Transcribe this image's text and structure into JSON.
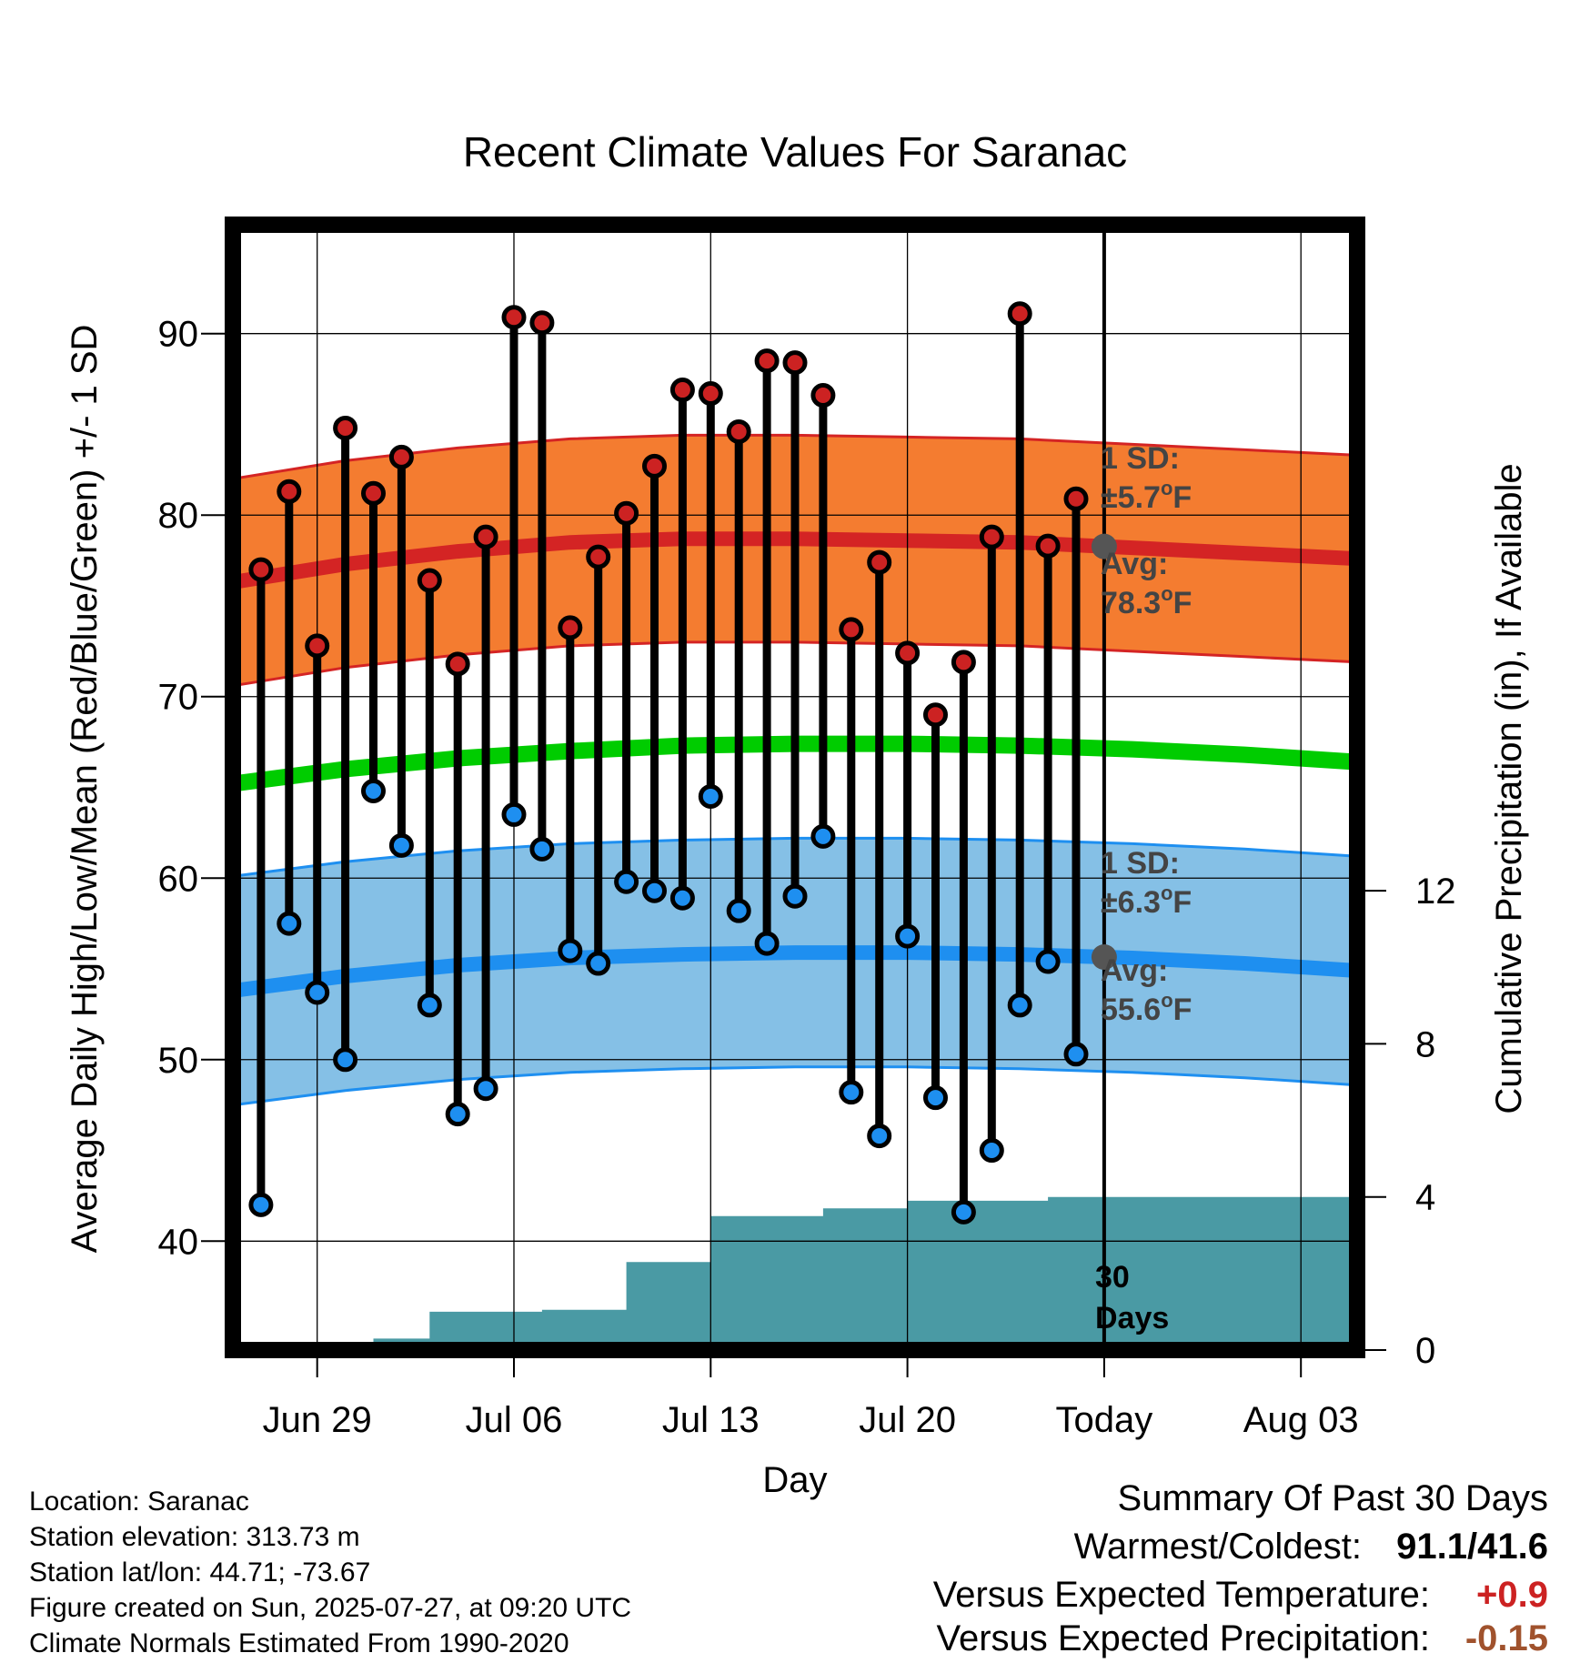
{
  "chart_data": {
    "type": "line",
    "title": "Recent Climate Values For Saranac",
    "xlabel": "Day",
    "ylabel": "Average Daily High/Low/Mean (Red/Blue/Green) +/- 1 SD",
    "y2label": "Cumulative Precipitation (in), If Available",
    "ylim": [
      34,
      96
    ],
    "y2lim": [
      0,
      29.4
    ],
    "yticks": [
      "40",
      "50",
      "60",
      "70",
      "80",
      "90"
    ],
    "y2ticks": [
      "0",
      "4",
      "8",
      "12"
    ],
    "x_start": "2025-06-26",
    "x_end": "2025-08-05",
    "xticks": [
      {
        "date": "2025-06-29",
        "label": "Jun 29"
      },
      {
        "date": "2025-07-06",
        "label": "Jul 06"
      },
      {
        "date": "2025-07-13",
        "label": "Jul 13"
      },
      {
        "date": "2025-07-20",
        "label": "Jul 20"
      },
      {
        "date": "2025-07-27",
        "label": "Today"
      },
      {
        "date": "2025-08-03",
        "label": "Aug 03"
      }
    ],
    "today": "2025-07-27",
    "today_label": [
      "30",
      "Days"
    ],
    "grid": true,
    "observed": {
      "dates": [
        "2025-06-27",
        "2025-06-28",
        "2025-06-29",
        "2025-06-30",
        "2025-07-01",
        "2025-07-02",
        "2025-07-03",
        "2025-07-04",
        "2025-07-05",
        "2025-07-06",
        "2025-07-07",
        "2025-07-08",
        "2025-07-09",
        "2025-07-10",
        "2025-07-11",
        "2025-07-12",
        "2025-07-13",
        "2025-07-14",
        "2025-07-15",
        "2025-07-16",
        "2025-07-17",
        "2025-07-18",
        "2025-07-19",
        "2025-07-20",
        "2025-07-21",
        "2025-07-22",
        "2025-07-23",
        "2025-07-24",
        "2025-07-25",
        "2025-07-26"
      ],
      "high": [
        77.0,
        81.3,
        72.8,
        84.8,
        81.2,
        83.2,
        76.4,
        71.8,
        78.8,
        90.9,
        90.6,
        73.8,
        77.7,
        80.1,
        82.7,
        86.9,
        86.7,
        84.6,
        88.5,
        88.4,
        86.6,
        73.7,
        77.4,
        72.4,
        69.0,
        71.9,
        78.8,
        91.1,
        78.3,
        80.9
      ],
      "low": [
        42.0,
        57.5,
        53.7,
        50.0,
        64.8,
        61.8,
        53.0,
        47.0,
        48.4,
        63.5,
        61.6,
        56.0,
        55.3,
        59.8,
        59.3,
        58.9,
        64.5,
        58.2,
        56.4,
        59.0,
        62.3,
        48.2,
        45.8,
        56.8,
        47.9,
        41.6,
        45.0,
        53.0,
        55.4,
        50.3
      ]
    },
    "normals": {
      "dates": [
        "2025-06-26",
        "2025-06-30",
        "2025-07-04",
        "2025-07-08",
        "2025-07-12",
        "2025-07-16",
        "2025-07-20",
        "2025-07-24",
        "2025-07-28",
        "2025-08-01",
        "2025-08-05"
      ],
      "high_avg": [
        76.3,
        77.3,
        78.0,
        78.5,
        78.7,
        78.7,
        78.6,
        78.5,
        78.2,
        77.9,
        77.6
      ],
      "high_sd": 5.7,
      "low_avg": [
        53.8,
        54.6,
        55.2,
        55.6,
        55.8,
        55.9,
        55.9,
        55.8,
        55.6,
        55.3,
        54.9
      ],
      "low_sd": 6.3,
      "mean_avg": [
        65.2,
        66.0,
        66.6,
        67.0,
        67.3,
        67.4,
        67.4,
        67.3,
        67.1,
        66.8,
        66.4
      ]
    },
    "precip_cumulative": {
      "dates": [
        "2025-06-26",
        "2025-06-27",
        "2025-06-28",
        "2025-06-29",
        "2025-06-30",
        "2025-07-01",
        "2025-07-02",
        "2025-07-03",
        "2025-07-04",
        "2025-07-05",
        "2025-07-06",
        "2025-07-07",
        "2025-07-08",
        "2025-07-09",
        "2025-07-10",
        "2025-07-11",
        "2025-07-12",
        "2025-07-13",
        "2025-07-14",
        "2025-07-15",
        "2025-07-16",
        "2025-07-17",
        "2025-07-18",
        "2025-07-19",
        "2025-07-20",
        "2025-07-21",
        "2025-07-22",
        "2025-07-23",
        "2025-07-24",
        "2025-07-25",
        "2025-07-26",
        "2025-07-27",
        "2025-08-05"
      ],
      "values": [
        0,
        0,
        0,
        0,
        0,
        0.3,
        0.3,
        1.0,
        1.0,
        1.0,
        1.0,
        1.05,
        1.05,
        1.05,
        2.3,
        2.3,
        2.3,
        3.5,
        3.5,
        3.5,
        3.5,
        3.7,
        3.7,
        3.7,
        3.9,
        3.9,
        3.9,
        3.9,
        3.9,
        4.0,
        4.0,
        4.0,
        4.0
      ]
    },
    "annotations": {
      "high_sd": [
        "1 SD:",
        "±5.7",
        "o",
        "F"
      ],
      "high_avg": [
        "Avg:",
        "78.3",
        "o",
        "F"
      ],
      "low_sd": [
        "1 SD:",
        "±6.3",
        "o",
        "F"
      ],
      "low_avg": [
        "Avg:",
        "55.6",
        "o",
        "F"
      ]
    },
    "colors": {
      "high_band": "#f47c30",
      "high_line": "#d42424",
      "low_band": "#85c0e6",
      "low_line": "#1e8ff0",
      "mean_line": "#00cc00",
      "precip": "#4a9aa4",
      "high_dot": "#cc2222",
      "low_dot": "#1e8ff0",
      "today_dot": "#555555"
    }
  },
  "footer": {
    "location": "Location: Saranac",
    "elevation": "Station elevation: 313.73 m",
    "latlon": "Station lat/lon: 44.71; -73.67",
    "created": "Figure created on Sun, 2025-07-27, at 09:20 UTC",
    "normals": "Climate Normals Estimated From 1990-2020"
  },
  "summary": {
    "title": "Summary Of Past 30 Days",
    "warmest_label": "Warmest/Coldest:",
    "warmest_value": "91.1/41.6",
    "temp_label": "Versus Expected Temperature:",
    "temp_value": "+0.9",
    "temp_color": "#cc2222",
    "precip_label": "Versus Expected Precipitation:",
    "precip_value": "-0.15",
    "precip_color": "#a0522d"
  }
}
